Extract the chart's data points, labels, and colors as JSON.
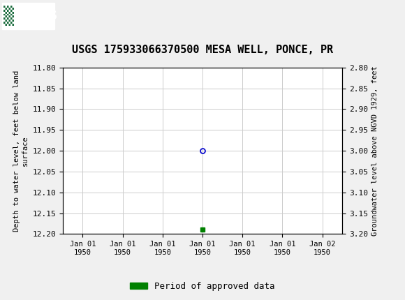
{
  "title": "USGS 175933066370500 MESA WELL, PONCE, PR",
  "title_fontsize": 11,
  "header_color": "#1a6b3c",
  "bg_color": "#f0f0f0",
  "plot_bg_color": "#ffffff",
  "grid_color": "#cccccc",
  "ylabel_left": "Depth to water level, feet below land\nsurface",
  "ylabel_right": "Groundwater level above NGVD 1929, feet",
  "ylim_left": [
    11.8,
    12.2
  ],
  "ylim_right": [
    3.2,
    2.8
  ],
  "yticks_left": [
    11.8,
    11.85,
    11.9,
    11.95,
    12.0,
    12.05,
    12.1,
    12.15,
    12.2
  ],
  "yticks_right": [
    3.2,
    3.15,
    3.1,
    3.05,
    3.0,
    2.95,
    2.9,
    2.85,
    2.8
  ],
  "ytick_labels_right": [
    "3.20",
    "3.15",
    "3.10",
    "3.05",
    "3.00",
    "2.95",
    "2.90",
    "2.85",
    "2.80"
  ],
  "data_point_y": 12.0,
  "data_point_color": "#0000cc",
  "data_point_marker": "o",
  "data_point_marker_size": 5,
  "green_point_y": 12.19,
  "green_point_color": "#008000",
  "green_point_marker": "s",
  "green_point_size": 4,
  "legend_label": "Period of approved data",
  "legend_color": "#008000",
  "xtick_positions": [
    0,
    1,
    2,
    3,
    4,
    5,
    6
  ],
  "xtick_labels": [
    "Jan 01\n1950",
    "Jan 01\n1950",
    "Jan 01\n1950",
    "Jan 01\n1950",
    "Jan 01\n1950",
    "Jan 01\n1950",
    "Jan 02\n1950"
  ],
  "data_x": 3,
  "xlim": [
    -0.5,
    6.5
  ]
}
